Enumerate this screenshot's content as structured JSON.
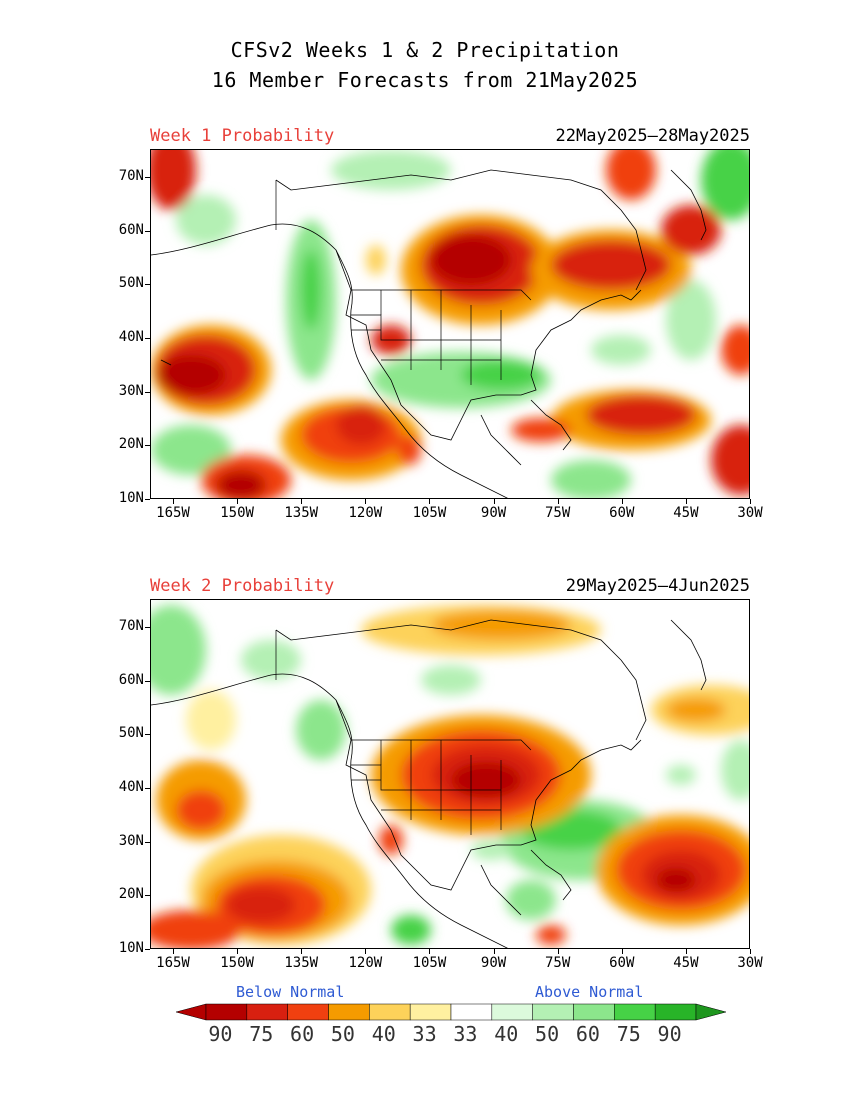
{
  "title": {
    "line1": "CFSv2 Weeks 1 & 2 Precipitation",
    "line2": "16 Member Forecasts from 21May2025"
  },
  "panels": [
    {
      "label": "Week 1 Probability",
      "date_range": "22May2025—28May2025"
    },
    {
      "label": "Week 2 Probability",
      "date_range": "29May2025—4Jun2025"
    }
  ],
  "axes": {
    "lat_labels": [
      "70N",
      "60N",
      "50N",
      "40N",
      "30N",
      "20N",
      "10N"
    ],
    "lon_labels": [
      "165W",
      "150W",
      "135W",
      "120W",
      "105W",
      "90W",
      "75W",
      "60W",
      "45W",
      "30W"
    ]
  },
  "legend": {
    "below_label": "Below Normal",
    "above_label": "Above Normal",
    "values": [
      "90",
      "75",
      "60",
      "50",
      "40",
      "33",
      "33",
      "40",
      "50",
      "60",
      "75",
      "90"
    ],
    "colors": [
      "#b40000",
      "#d82010",
      "#f04010",
      "#f59b00",
      "#fdd25a",
      "#fff0a0",
      "#ffffff",
      "#dcfadc",
      "#b4f0b4",
      "#8ce68c",
      "#46d246",
      "#28b428"
    ],
    "arrow_left_color": "#b40000",
    "arrow_right_color": "#1e961e"
  }
}
